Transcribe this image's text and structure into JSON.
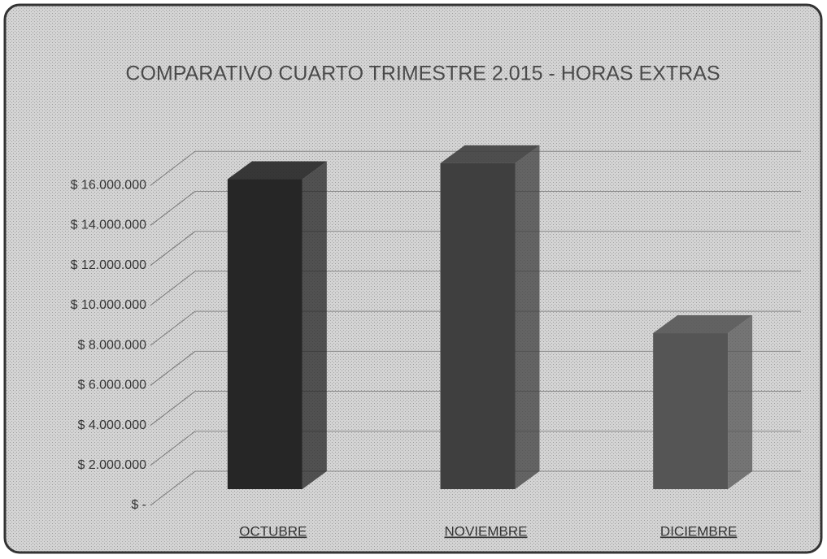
{
  "chart_data": {
    "type": "bar3d",
    "title": "COMPARATIVO CUARTO TRIMESTRE 2.015 - HORAS EXTRAS",
    "categories": [
      "OCTUBRE",
      "NOVIEMBRE",
      "DICIEMBRE"
    ],
    "values": [
      15500000,
      16300000,
      7800000
    ],
    "colors": [
      "#262626",
      "#3f3f3f",
      "#555555"
    ],
    "ylim": [
      0,
      18000000
    ],
    "yticks": [
      {
        "value": 0,
        "label": "$ -"
      },
      {
        "value": 2000000,
        "label": "$ 2.000.000"
      },
      {
        "value": 4000000,
        "label": "$ 4.000.000"
      },
      {
        "value": 6000000,
        "label": "$ 6.000.000"
      },
      {
        "value": 8000000,
        "label": "$ 8.000.000"
      },
      {
        "value": 10000000,
        "label": "$ 10.000.000"
      },
      {
        "value": 12000000,
        "label": "$ 12.000.000"
      },
      {
        "value": 14000000,
        "label": "$ 14.000.000"
      },
      {
        "value": 16000000,
        "label": "$ 16.000.000"
      }
    ],
    "grid": true
  }
}
